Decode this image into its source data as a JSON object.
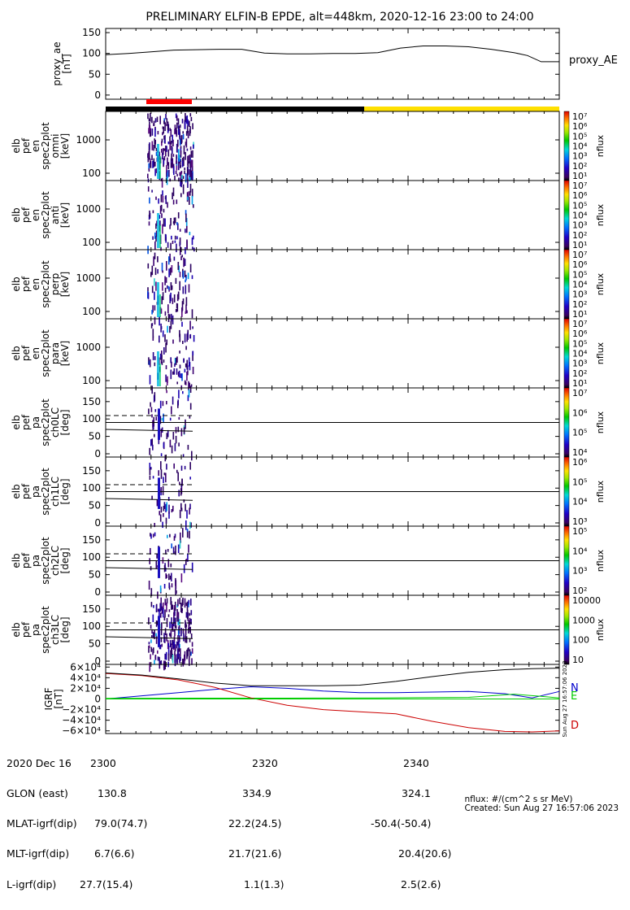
{
  "title": "PRELIMINARY ELFIN-B EPDE, alt=448km, 2020-12-16 23:00 to 24:00",
  "panels": {
    "ae": {
      "ylabel": [
        "proxy_ae",
        "[nT]"
      ],
      "yticks": [
        "150",
        "100",
        "50",
        "0"
      ],
      "legend": "proxy_AE",
      "ylim": [
        -10,
        160
      ],
      "series": {
        "x": [
          0,
          5,
          10,
          15,
          20,
          25,
          30,
          35,
          40,
          45,
          50,
          55,
          60,
          65,
          70,
          75,
          80,
          85,
          90,
          93,
          96,
          100
        ],
        "y": [
          97,
          100,
          104,
          108,
          109,
          110,
          110,
          101,
          99,
          99,
          100,
          100,
          102,
          113,
          118,
          118,
          116,
          110,
          102,
          95,
          80,
          80
        ]
      }
    },
    "spectrograms": [
      {
        "ylabel": [
          "elb",
          "pef",
          "en",
          "spec2plot",
          "omni",
          "[keV]"
        ],
        "yticks": [
          "1000",
          "100"
        ],
        "cbar_label": "nflux",
        "cbar_ticks": [
          "10⁷",
          "10⁶",
          "10⁵",
          "10⁴",
          "10³",
          "10²",
          "10¹"
        ]
      },
      {
        "ylabel": [
          "elb",
          "pef",
          "en",
          "spec2plot",
          "anti",
          "[keV]"
        ],
        "yticks": [
          "1000",
          "100"
        ],
        "cbar_label": "nflux",
        "cbar_ticks": [
          "10⁷",
          "10⁶",
          "10⁵",
          "10⁴",
          "10³",
          "10²",
          "10¹"
        ]
      },
      {
        "ylabel": [
          "elb",
          "pef",
          "en",
          "spec2plot",
          "perp",
          "[keV]"
        ],
        "yticks": [
          "1000",
          "100"
        ],
        "cbar_label": "nflux",
        "cbar_ticks": [
          "10⁷",
          "10⁶",
          "10⁵",
          "10⁴",
          "10³",
          "10²",
          "10¹"
        ]
      },
      {
        "ylabel": [
          "elb",
          "pef",
          "en",
          "spec2plot",
          "para",
          "[keV]"
        ],
        "yticks": [
          "1000",
          "100"
        ],
        "cbar_label": "nflux",
        "cbar_ticks": [
          "10⁷",
          "10⁶",
          "10⁵",
          "10⁴",
          "10³",
          "10²",
          "10¹"
        ]
      }
    ],
    "pitch": [
      {
        "ylabel": [
          "elb",
          "pef",
          "pa",
          "spec2plot",
          "ch0LC",
          "[deg]"
        ],
        "yticks": [
          "150",
          "100",
          "50",
          "0"
        ],
        "cbar_label": "nflux",
        "cbar_ticks": [
          "10⁷",
          "10⁶",
          "10⁵",
          "10⁴"
        ]
      },
      {
        "ylabel": [
          "elb",
          "pef",
          "pa",
          "spec2plot",
          "ch1LC",
          "[deg]"
        ],
        "yticks": [
          "150",
          "100",
          "50",
          "0"
        ],
        "cbar_label": "nflux",
        "cbar_ticks": [
          "10⁶",
          "10⁵",
          "10⁴",
          "10³"
        ]
      },
      {
        "ylabel": [
          "elb",
          "pef",
          "pa",
          "spec2plot",
          "ch2LC",
          "[deg]"
        ],
        "yticks": [
          "150",
          "100",
          "50",
          "0"
        ],
        "cbar_label": "nflux",
        "cbar_ticks": [
          "10⁵",
          "10⁴",
          "10³",
          "10²"
        ]
      },
      {
        "ylabel": [
          "elb",
          "pef",
          "pa",
          "spec2plot",
          "ch3LC",
          "[deg]"
        ],
        "yticks": [
          "150",
          "100",
          "50",
          "0"
        ],
        "cbar_label": "nflux",
        "cbar_ticks": [
          "10000",
          "1000",
          "100",
          "10"
        ]
      }
    ],
    "igrf": {
      "ylabel": [
        "IGRF",
        "[nT]"
      ],
      "yticks": [
        "6×10⁴",
        "4×10⁴",
        "2×10⁴",
        "0",
        "−2×10⁴",
        "−4×10⁴",
        "−6×10⁴"
      ],
      "legend": [
        "N",
        "E",
        "D"
      ],
      "legend_colors": [
        "#0000cc",
        "#00cc00",
        "#cc0000"
      ],
      "side_text": "Sun Aug 27 16:57:06 2023"
    }
  },
  "colors": {
    "orbit_bar_black": "#000000",
    "orbit_bar_yellow": "#ffe000",
    "highlight_red": "#ff0000"
  },
  "footer": {
    "rows": [
      [
        "2020 Dec 16",
        "2300",
        "2320",
        "2340"
      ],
      [
        "GLON (east)",
        "130.8",
        "334.9",
        "324.1"
      ],
      [
        "MLAT-igrf(dip)",
        "79.0(74.7)",
        "22.2(24.5)",
        "-50.4(-50.4)"
      ],
      [
        "MLT-igrf(dip)",
        "6.7(6.6)",
        "21.7(21.6)",
        "20.4(20.6)"
      ],
      [
        "L-igrf(dip)",
        "27.7(15.4)",
        "1.1(1.3)",
        "2.5(2.6)"
      ]
    ],
    "units_note": "nflux: #/(cm^2 s sr MeV)",
    "created": "Created: Sun Aug 27 16:57:06 2023"
  },
  "chart_data": [
    {
      "type": "line",
      "title": "PRELIMINARY ELFIN-B EPDE, alt=448km, 2020-12-16 23:00 to 24:00",
      "ylabel": "proxy_ae [nT]",
      "ylim": [
        -10,
        160
      ],
      "series": [
        {
          "name": "proxy_AE",
          "x": [
            0,
            5,
            10,
            15,
            20,
            25,
            30,
            35,
            40,
            45,
            50,
            55,
            60,
            65,
            70,
            75,
            80,
            85,
            90,
            93,
            96,
            100
          ],
          "values": [
            97,
            100,
            104,
            108,
            109,
            110,
            110,
            101,
            99,
            99,
            100,
            100,
            102,
            113,
            118,
            118,
            116,
            110,
            102,
            95,
            80,
            80
          ]
        }
      ]
    },
    {
      "type": "line",
      "ylabel": "IGRF [nT]",
      "ylim": [
        -65000,
        65000
      ],
      "series": [
        {
          "name": "N",
          "x": [
            0,
            8,
            16,
            24,
            32,
            40,
            48,
            56,
            64,
            72,
            80,
            88,
            94,
            100
          ],
          "values": [
            0,
            6000,
            12000,
            18000,
            23000,
            20000,
            15000,
            12000,
            12000,
            13000,
            14000,
            10000,
            2000,
            14000
          ]
        },
        {
          "name": "E",
          "x": [
            0,
            20,
            40,
            60,
            80,
            90,
            96,
            100
          ],
          "values": [
            1000,
            1500,
            1500,
            2000,
            3000,
            9000,
            5000,
            2000
          ]
        },
        {
          "name": "D",
          "x": [
            0,
            8,
            16,
            24,
            32,
            40,
            48,
            56,
            64,
            72,
            80,
            88,
            94,
            100
          ],
          "values": [
            48000,
            44000,
            36000,
            22000,
            2000,
            -12000,
            -20000,
            -24000,
            -28000,
            -42000,
            -54000,
            -61000,
            -62000,
            -60000
          ]
        },
        {
          "name": "",
          "x": [
            0,
            8,
            16,
            24,
            32,
            40,
            48,
            56,
            64,
            72,
            80,
            88,
            94,
            100
          ],
          "values": [
            49000,
            45000,
            38000,
            30000,
            25000,
            25000,
            25000,
            26000,
            33000,
            42000,
            50000,
            55000,
            57000,
            58000
          ]
        }
      ]
    }
  ]
}
